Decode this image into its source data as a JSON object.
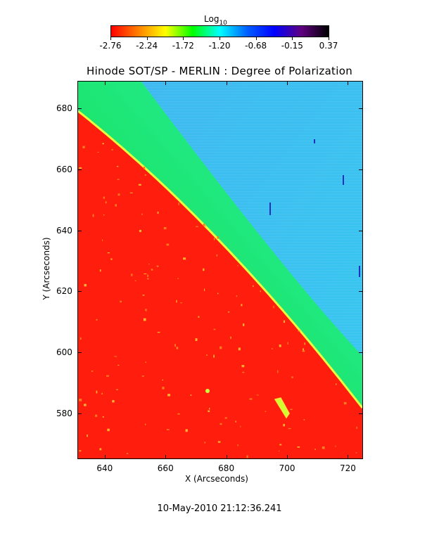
{
  "colorbar": {
    "title_base": "Log",
    "title_sub": "10",
    "tick_labels": [
      "-2.76",
      "-2.24",
      "-1.72",
      "-1.20",
      "-0.68",
      "-0.15",
      "0.37"
    ],
    "range": [
      -2.76,
      0.37
    ],
    "colors": [
      "#ff0000",
      "#ff8000",
      "#ffff00",
      "#00ff00",
      "#00ffff",
      "#0060ff",
      "#0000ff",
      "#600080",
      "#000000"
    ]
  },
  "plot": {
    "title": "Hinode SOT/SP - MERLIN : Degree of Polarization",
    "xlabel": "X (Arcseconds)",
    "ylabel": "Y (Arcseconds)",
    "xlim": [
      631,
      725
    ],
    "ylim": [
      565,
      689
    ],
    "x_ticks": [
      "640",
      "660",
      "680",
      "700",
      "720"
    ],
    "y_ticks": [
      "580",
      "600",
      "620",
      "640",
      "660",
      "680"
    ],
    "colors": {
      "disk": "#ff1a0a",
      "limb_edge": "#e8ff40",
      "green_band": "#14e04a",
      "sky": "#3cc4f0"
    }
  },
  "timestamp": "10-May-2010 21:12:36.241"
}
